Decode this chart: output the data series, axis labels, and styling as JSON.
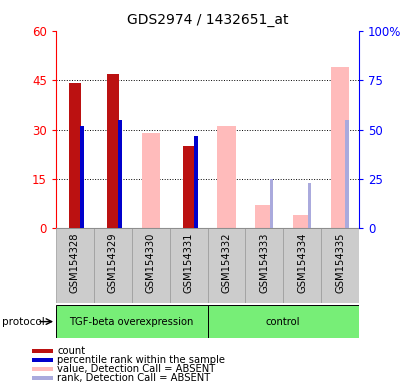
{
  "title": "GDS2974 / 1432651_at",
  "samples": [
    "GSM154328",
    "GSM154329",
    "GSM154330",
    "GSM154331",
    "GSM154332",
    "GSM154333",
    "GSM154334",
    "GSM154335"
  ],
  "count_values": [
    44,
    47,
    null,
    25,
    null,
    null,
    null,
    null
  ],
  "rank_pct": [
    52,
    55,
    null,
    47,
    null,
    null,
    null,
    null
  ],
  "value_absent": [
    null,
    null,
    29,
    null,
    31,
    7,
    4,
    49
  ],
  "rank_absent_pct": [
    null,
    null,
    null,
    null,
    null,
    25,
    23,
    55
  ],
  "left_ylim": [
    0,
    60
  ],
  "right_ylim": [
    0,
    100
  ],
  "left_yticks": [
    0,
    15,
    30,
    45,
    60
  ],
  "right_yticks": [
    0,
    25,
    50,
    75,
    100
  ],
  "left_yticklabels": [
    "0",
    "15",
    "30",
    "45",
    "60"
  ],
  "right_yticklabels": [
    "0",
    "25",
    "50",
    "75",
    "100%"
  ],
  "color_count": "#bb1111",
  "color_rank": "#0000cc",
  "color_value_absent": "#ffbbbb",
  "color_rank_absent": "#aaaadd",
  "group1_label": "TGF-beta overexpression",
  "group2_label": "control",
  "group_color": "#77ee77",
  "legend_items": [
    {
      "label": "count",
      "color": "#bb1111"
    },
    {
      "label": "percentile rank within the sample",
      "color": "#0000cc"
    },
    {
      "label": "value, Detection Call = ABSENT",
      "color": "#ffbbbb"
    },
    {
      "label": "rank, Detection Call = ABSENT",
      "color": "#aaaadd"
    }
  ]
}
